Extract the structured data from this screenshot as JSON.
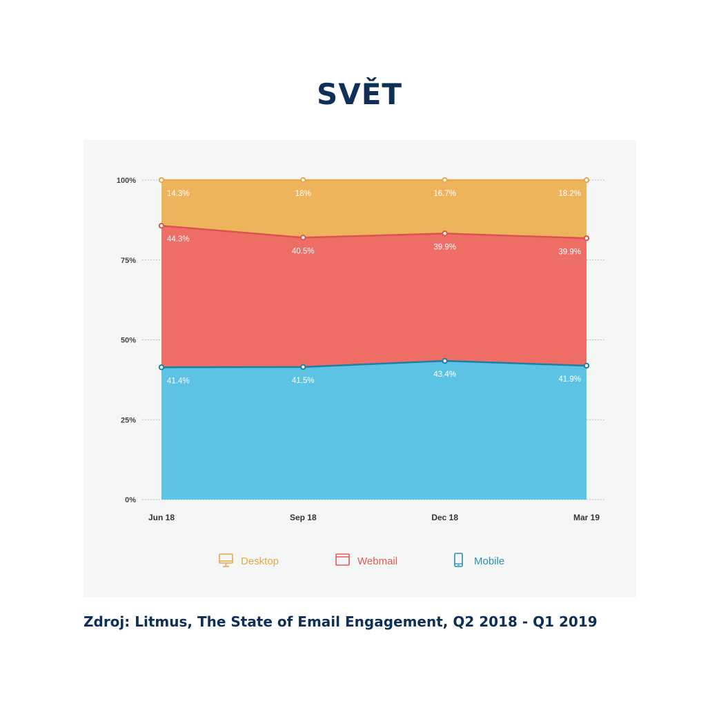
{
  "title": "SVĚT",
  "source": "Zdroj: Litmus, The State of Email Engagement, Q2 2018 - Q1 2019",
  "colors": {
    "desktop_fill": "#eeb45c",
    "desktop_line": "#e8a84a",
    "webmail_fill": "#ee6e66",
    "webmail_line": "#d9544d",
    "mobile_fill": "#5dc3e5",
    "mobile_line": "#1d7fa3",
    "desktop_text": "#e9a54a",
    "webmail_text": "#e25a53",
    "mobile_text": "#2b8fb8"
  },
  "chart_data": {
    "type": "area",
    "stacked": true,
    "x": [
      "Jun 18",
      "Sep 18",
      "Dec 18",
      "Mar 19"
    ],
    "yticks": [
      "0%",
      "25%",
      "50%",
      "75%",
      "100%"
    ],
    "ylim": [
      0,
      100
    ],
    "grid": true,
    "legend_position": "bottom",
    "series": [
      {
        "name": "Mobile",
        "key": "mobile",
        "values": [
          41.4,
          41.5,
          43.4,
          41.9
        ],
        "labels": [
          "41.4%",
          "41.5%",
          "43.4%",
          "41.9%"
        ],
        "icon": "mobile-icon"
      },
      {
        "name": "Webmail",
        "key": "webmail",
        "values": [
          44.3,
          40.5,
          39.9,
          39.9
        ],
        "labels": [
          "44.3%",
          "40.5%",
          "39.9%",
          "39.9%"
        ],
        "icon": "webmail-icon"
      },
      {
        "name": "Desktop",
        "key": "desktop",
        "values": [
          14.3,
          18,
          16.7,
          18.2
        ],
        "labels": [
          "14.3%",
          "18%",
          "16.7%",
          "18.2%"
        ],
        "icon": "desktop-icon"
      }
    ],
    "legend": [
      {
        "label": "Desktop",
        "key": "desktop",
        "icon": "desktop-icon"
      },
      {
        "label": "Webmail",
        "key": "webmail",
        "icon": "webmail-icon"
      },
      {
        "label": "Mobile",
        "key": "mobile",
        "icon": "mobile-icon"
      }
    ]
  }
}
